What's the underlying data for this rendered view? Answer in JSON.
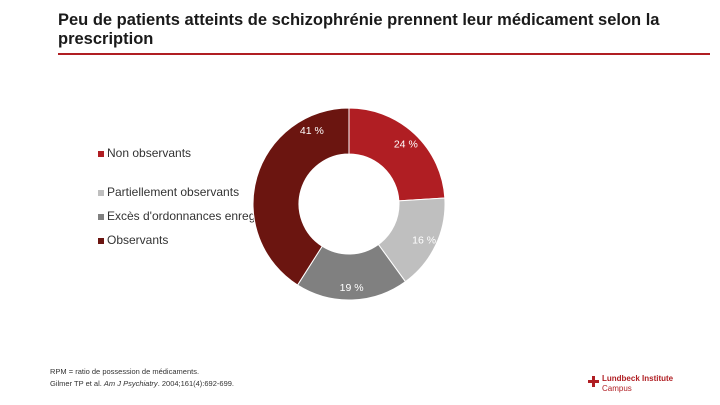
{
  "title": "Peu de patients atteints de schizophrénie prennent leur médicament selon la prescription",
  "colors": {
    "accent": "#b01e23",
    "non_observants": "#b01e23",
    "partiellement": "#bfbfbf",
    "exces": "#808080",
    "observants": "#6b1510"
  },
  "legend": [
    {
      "label": "Non observants",
      "color": "#b01e23"
    },
    {
      "label": "Partiellement observants",
      "color": "#bfbfbf"
    },
    {
      "label": "Excès d'ordonnances enregistrées",
      "color": "#808080"
    },
    {
      "label": "Observants",
      "color": "#6b1510"
    }
  ],
  "chart_data": {
    "type": "pie",
    "donut": true,
    "title": "",
    "categories": [
      "Non observants",
      "Partiellement observants",
      "Excès d'ordonnances enregistrées",
      "Observants"
    ],
    "values": [
      24,
      16,
      19,
      41
    ],
    "labels": [
      "24 %",
      "16 %",
      "19 %",
      "41 %"
    ],
    "colors": [
      "#b01e23",
      "#bfbfbf",
      "#808080",
      "#6b1510"
    ],
    "legend_position": "left"
  },
  "footnote": {
    "line1": "RPM = ratio de possession de médicaments.",
    "line2_pre": "Gilmer TP et al.",
    "line2_journal": "Am J Psychiatry",
    "line2_post": ". 2004;161(4):692-699."
  },
  "logo": {
    "line1": "Lundbeck Institute",
    "line2": "Campus"
  }
}
